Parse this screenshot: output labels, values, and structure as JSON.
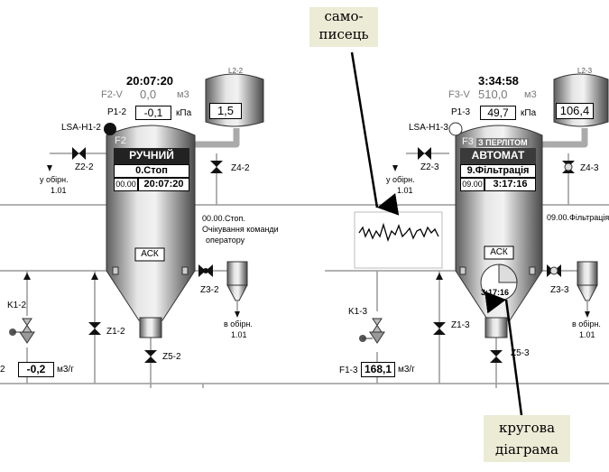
{
  "scheme_left": {
    "clock": "20:07:20",
    "f_v_label": "F2-V",
    "f_v_value": "0,0",
    "f_v_unit": "м3",
    "p_label": "P1-2",
    "p_value": "-0,1",
    "p_unit": "кПа",
    "tank_value": "1,5",
    "tank_label": "L2-2",
    "lsa_label": "LSA-H1-2",
    "filter_label": "F2",
    "mode": "РУЧНИЙ",
    "state": "0.Стоп",
    "time_small": "00.00",
    "time_big": "20:07:20",
    "valve_z2": "Z2-2",
    "to_collector": "у обірн.",
    "to_collector_num": "1.01",
    "valve_z4": "Z4-2",
    "status_line1": "00.00.Стоп.",
    "status_line2": "Очікування команди",
    "status_line3": "оператору",
    "ack": "АСК",
    "valve_z3": "Z3-2",
    "k_label": "K1-2",
    "valve_z1": "Z1-2",
    "valve_z5": "Z5-2",
    "flow_prefix": "2",
    "flow_value": "-0,2",
    "flow_unit": "м3/г",
    "collector2_a": "в обірн.",
    "collector2_b": "1.01"
  },
  "scheme_right": {
    "clock": "3:34:58",
    "f_v_label": "F3-V",
    "f_v_value": "510,0",
    "f_v_unit": "м3",
    "p_label": "P1-3",
    "p_value": "49,7",
    "p_unit": "кПа",
    "tank_value": "106,4",
    "tank_label": "L2-3",
    "lsa_label": "LSA-H1-3",
    "filter_label": "F3",
    "perlite": "З ПЕРЛІТОМ",
    "mode": "АВТОМАТ",
    "state": "9.Фільтрація",
    "time_small": "09.00",
    "time_big": "3:17:16",
    "valve_z2": "Z2-3",
    "to_collector": "у обірн.",
    "to_collector_num": "1.01",
    "valve_z4": "Z4-3",
    "status_line1": "09.00.Фільтрація",
    "ack": "АСК",
    "pie_time": "3:17:16",
    "valve_z3": "Z3-3",
    "k_label": "K1-3",
    "valve_z1": "Z1-3",
    "valve_z5": "Z5-3",
    "flow_label": "F1-3",
    "flow_value": "168,1",
    "flow_unit": "м3/г",
    "collector2_a": "в обірн.",
    "collector2_b": "1.01"
  },
  "callouts": {
    "recorder_line1": "само-",
    "recorder_line2": "писець",
    "pie_line1": "кругова",
    "pie_line2": "діаграма"
  }
}
